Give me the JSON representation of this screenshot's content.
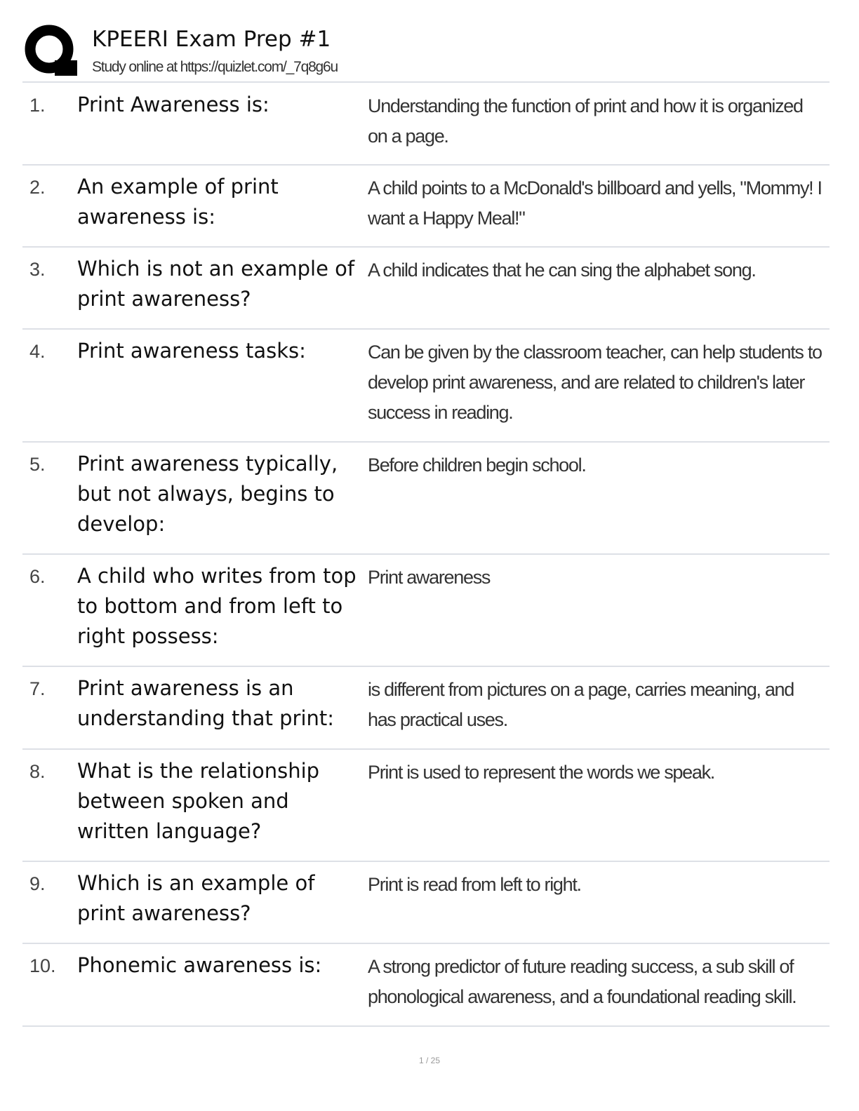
{
  "header": {
    "title": "KPEERI Exam Prep #1",
    "subtitle": "Study online at https://quizlet.com/_7q8g6u",
    "logo_icon": "quizlet-q-logo"
  },
  "cards": [
    {
      "num": "1.",
      "term": "Print Awareness is:",
      "definition": "Understanding the function of print and how it is organized on a page."
    },
    {
      "num": "2.",
      "term": "An example of print awareness is:",
      "definition": "A child points to a McDonald's billboard and yells, \"Mommy! I want a Happy Meal!\""
    },
    {
      "num": "3.",
      "term": "Which is not an example of print awareness?",
      "definition": "A child indicates that he can sing the alphabet song."
    },
    {
      "num": "4.",
      "term": "Print awareness tasks:",
      "definition": "Can be given by the classroom teacher, can help students to develop print awareness, and are related to children's later success in reading."
    },
    {
      "num": "5.",
      "term": "Print awareness typically, but not always, begins to develop:",
      "definition": "Before children begin school."
    },
    {
      "num": "6.",
      "term": "A child who writes from top to bottom and from left to right possess:",
      "definition": "Print awareness"
    },
    {
      "num": "7.",
      "term": "Print awareness is an understanding that print:",
      "definition": "is different from pictures on a page, carries meaning, and has practical uses."
    },
    {
      "num": "8.",
      "term": "What is the relationship between spoken and written language?",
      "definition": "Print is used to represent the words we speak."
    },
    {
      "num": "9.",
      "term": "Which is an example of print awareness?",
      "definition": "Print is read from left to right."
    },
    {
      "num": "10.",
      "term": "Phonemic awareness is:",
      "definition": "A strong predictor of future reading success, a sub skill of phonological awareness, and a foundational reading skill."
    }
  ],
  "footer": {
    "page": "1 / 25"
  }
}
